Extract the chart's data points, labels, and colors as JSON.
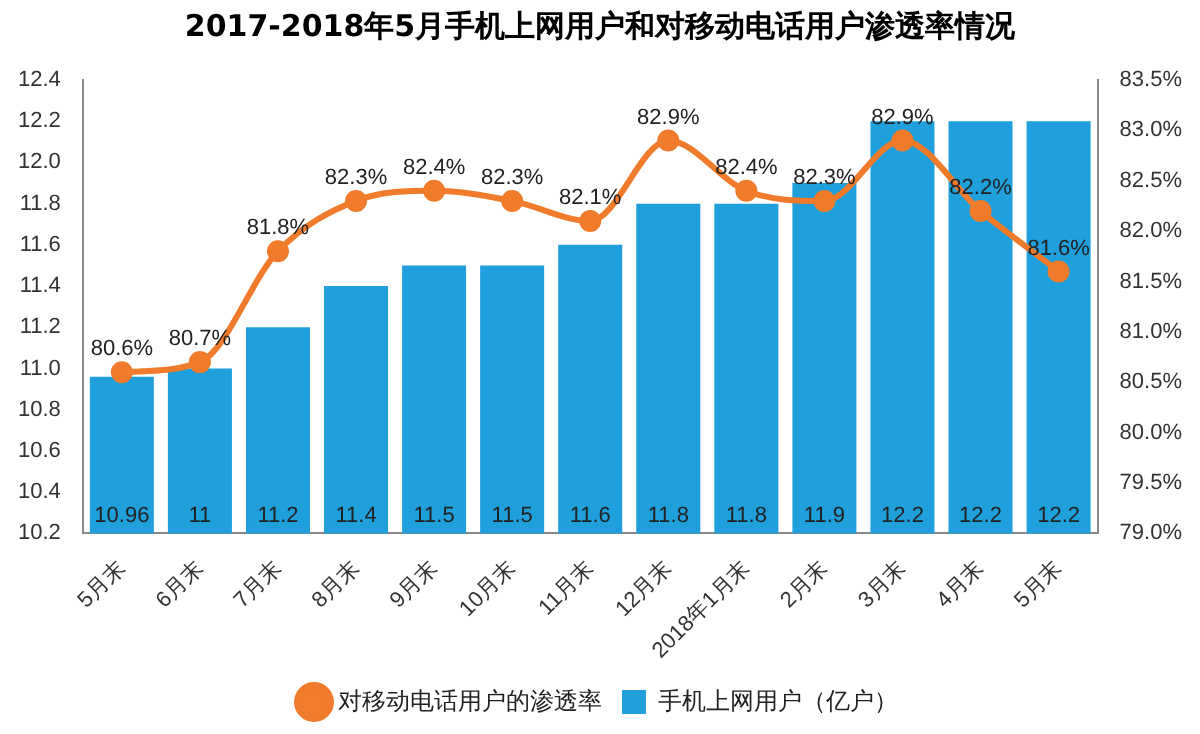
{
  "chart_data": {
    "type": "bar",
    "title": "2017-2018年5月手机上网用户和对移动电话用户渗透率情况",
    "categories": [
      "5月末",
      "6月末",
      "7月末",
      "8月末",
      "9月末",
      "10月末",
      "11月末",
      "12月末",
      "2018年1月末",
      "2月末",
      "3月末",
      "4月末",
      "5月末"
    ],
    "series": [
      {
        "name": "手机上网用户（亿户）",
        "color": "#1f9fdb",
        "values": [
          10.96,
          11,
          11.2,
          11.4,
          11.5,
          11.5,
          11.6,
          11.8,
          11.8,
          11.9,
          12.2,
          12.2,
          12.2
        ],
        "value_labels": [
          "10.96",
          "11",
          "11.2",
          "11.4",
          "11.5",
          "11.5",
          "11.6",
          "11.8",
          "11.8",
          "11.9",
          "12.2",
          "12.2",
          "12.2"
        ]
      },
      {
        "name": "对移动电话用户的渗透率",
        "type": "line",
        "axis": "y2",
        "color": "#f07b2a",
        "values": [
          80.6,
          80.7,
          81.8,
          82.3,
          82.4,
          82.3,
          82.1,
          82.9,
          82.4,
          82.3,
          82.9,
          82.2,
          81.6
        ],
        "value_labels": [
          "80.6%",
          "80.7%",
          "81.8%",
          "82.3%",
          "82.4%",
          "82.3%",
          "82.1%",
          "82.9%",
          "82.4%",
          "82.3%",
          "82.9%",
          "82.2%",
          "81.6%"
        ]
      }
    ],
    "ylim": [
      10.2,
      12.4
    ],
    "yticks": [
      10.2,
      10.4,
      10.6,
      10.8,
      {
        "value": 11,
        "label": "11.0"
      },
      11.2,
      11.4,
      11.6,
      11.8,
      {
        "value": 12,
        "label": "12.0"
      },
      12.2,
      12.4
    ],
    "y2lim": [
      79,
      83.5
    ],
    "y2ticks": [
      {
        "value": 79,
        "label": "79.0%"
      },
      {
        "value": 79.5,
        "label": "79.5%"
      },
      {
        "value": 80,
        "label": "80.0%"
      },
      {
        "value": 80.5,
        "label": "80.5%"
      },
      {
        "value": 81,
        "label": "81.0%"
      },
      {
        "value": 81.5,
        "label": "81.5%"
      },
      {
        "value": 82,
        "label": "82.0%"
      },
      {
        "value": 82.5,
        "label": "82.5%"
      },
      {
        "value": 83,
        "label": "83.0%"
      },
      {
        "value": 83.5,
        "label": "83.5%"
      }
    ],
    "legend": "bottom",
    "marker": "circle",
    "line_style": "solid",
    "grid": false
  }
}
